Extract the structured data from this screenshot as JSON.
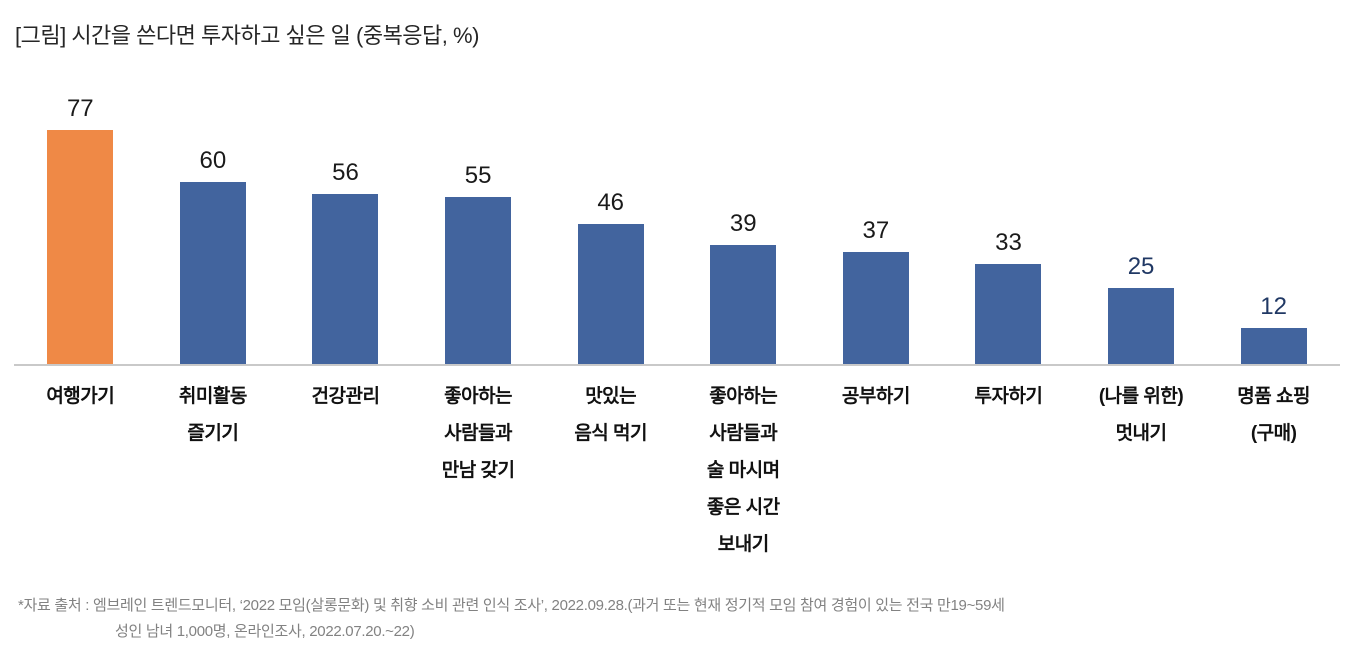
{
  "title": "[그림] 시간을 쓴다면 투자하고 싶은 일 (중복응답, %)",
  "footer": {
    "line1": "*자료 출처 : 엠브레인 트렌드모니터, ‘2022 모임(살롱문화) 및 취향 소비 관련 인식 조사’, 2022.09.28.(과거 또는 현재 정기적 모임 참여 경험이 있는 전국 만19~59세",
    "line2": "성인 남녀 1,000명, 온라인조사, 2022.07.20.~22)"
  },
  "colors": {
    "highlight_orange": "#EF8946",
    "bar_blue": "#42649E",
    "axis_line": "#C9C9C9",
    "value_label_black": "#1a1a1a",
    "value_label_navy": "#203864",
    "footer_gray": "#828282",
    "title_color": "#262626"
  },
  "chart_data": {
    "type": "bar",
    "title": "[그림] 시간을 쓴다면 투자하고 싶은 일 (중복응답, %)",
    "unit": "%",
    "multiple_response": true,
    "categories": [
      "여행가기",
      "취미활동 즐기기",
      "건강관리",
      "좋아하는 사람들과 만남 갖기",
      "맛있는 음식 먹기",
      "좋아하는 사람들과 술 마시며 좋은 시간 보내기",
      "공부하기",
      "투자하기",
      "(나를 위한) 멋내기",
      "명품 쇼핑 (구매)"
    ],
    "category_lines": [
      [
        "여행가기"
      ],
      [
        "취미활동",
        "즐기기"
      ],
      [
        "건강관리"
      ],
      [
        "좋아하는",
        "사람들과",
        "만남 갖기"
      ],
      [
        "맛있는",
        "음식 먹기"
      ],
      [
        "좋아하는",
        "사람들과",
        "술 마시며",
        "좋은 시간",
        "보내기"
      ],
      [
        "공부하기"
      ],
      [
        "투자하기"
      ],
      [
        "(나를 위한)",
        "멋내기"
      ],
      [
        "명품 쇼핑",
        "(구매)"
      ]
    ],
    "values": [
      77,
      60,
      56,
      55,
      46,
      39,
      37,
      33,
      25,
      12
    ],
    "bar_colors": [
      "#EF8946",
      "#42649E",
      "#42649E",
      "#42649E",
      "#42649E",
      "#42649E",
      "#42649E",
      "#42649E",
      "#42649E",
      "#42649E"
    ],
    "value_label_colors": [
      "#1a1a1a",
      "#1a1a1a",
      "#1a1a1a",
      "#1a1a1a",
      "#1a1a1a",
      "#1a1a1a",
      "#1a1a1a",
      "#1a1a1a",
      "#203864",
      "#203864"
    ],
    "highlight_index": 0,
    "ylim": [
      0,
      80
    ],
    "xlabel": "",
    "ylabel": "",
    "grid": false,
    "legend": "none"
  }
}
